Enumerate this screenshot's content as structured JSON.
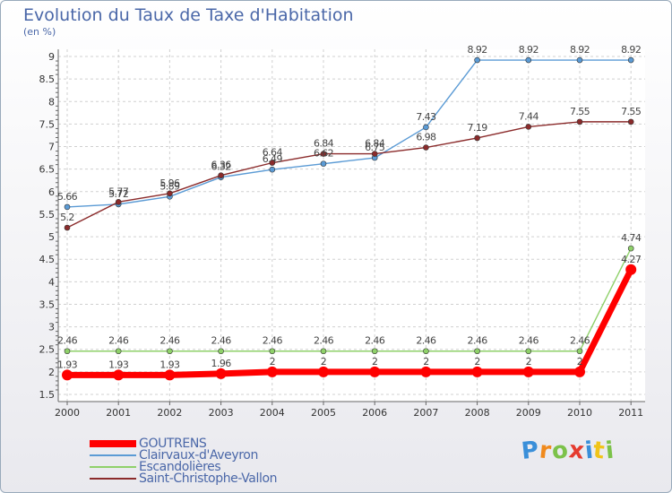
{
  "chart_data": {
    "type": "line",
    "title": "Evolution du Taux de Taxe d'Habitation",
    "subtitle": "(en %)",
    "categories": [
      "2000",
      "2001",
      "2002",
      "2003",
      "2004",
      "2005",
      "2006",
      "2007",
      "2008",
      "2009",
      "2010",
      "2011"
    ],
    "ylim": [
      1.5,
      9
    ],
    "yticks": [
      "1.5",
      "2",
      "2.5",
      "3",
      "3.5",
      "4",
      "4.5",
      "5",
      "5.5",
      "6",
      "6.5",
      "7",
      "7.5",
      "8",
      "8.5",
      "9"
    ],
    "grid": true,
    "legend_position": "bottom-left",
    "series": [
      {
        "name": "GOUTRENS",
        "color": "#ff0000",
        "emphasis": true,
        "values": [
          1.93,
          1.93,
          1.93,
          1.96,
          2,
          2,
          2,
          2,
          2,
          2,
          2,
          4.27
        ],
        "labels": [
          "1.93",
          "1.93",
          "1.93",
          "1.96",
          "2",
          "2",
          "2",
          "2",
          "2",
          "2",
          "2",
          "4.27"
        ]
      },
      {
        "name": "Clairvaux-d'Aveyron",
        "color": "#5b9bd5",
        "values": [
          5.66,
          5.72,
          5.89,
          6.32,
          6.49,
          6.62,
          6.75,
          7.43,
          8.92,
          8.92,
          8.92,
          8.92
        ],
        "labels": [
          "5.66",
          "5.72",
          "5.89",
          "6.32",
          "6.49",
          "6.62",
          "6.75",
          "7.43",
          "8.92",
          "8.92",
          "8.92",
          "8.92"
        ]
      },
      {
        "name": "Escandolières",
        "color": "#8fd16a",
        "values": [
          2.46,
          2.46,
          2.46,
          2.46,
          2.46,
          2.46,
          2.46,
          2.46,
          2.46,
          2.46,
          2.46,
          4.74
        ],
        "labels": [
          "2.46",
          "2.46",
          "2.46",
          "2.46",
          "2.46",
          "2.46",
          "2.46",
          "2.46",
          "2.46",
          "2.46",
          "2.46",
          "4.74"
        ]
      },
      {
        "name": "Saint-Christophe-Vallon",
        "color": "#8b2b2b",
        "values": [
          5.2,
          5.77,
          5.96,
          6.36,
          6.64,
          6.84,
          6.84,
          6.98,
          7.19,
          7.44,
          7.55,
          7.55
        ],
        "labels": [
          "5.2",
          "5.77",
          "5.96",
          "6.36",
          "6.64",
          "6.84",
          "6.84",
          "6.98",
          "7.19",
          "7.44",
          "7.55",
          "7.55"
        ]
      }
    ]
  },
  "logo": {
    "letters": [
      "P",
      "r",
      "o",
      "x",
      "i",
      "t",
      "i"
    ],
    "colors": [
      "#3a8fd9",
      "#f08a1d",
      "#7cc24a",
      "#e53b2f",
      "#3a8fd9",
      "#f0c419",
      "#7cc24a"
    ]
  }
}
